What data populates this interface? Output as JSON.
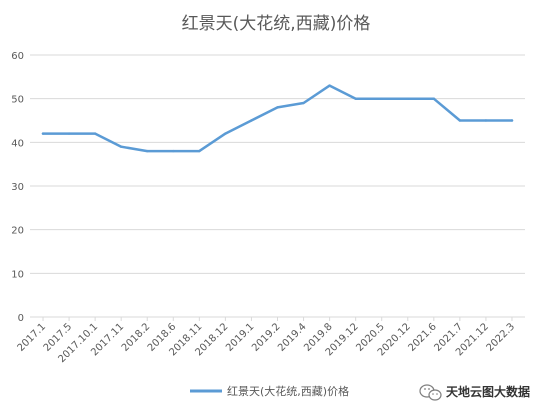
{
  "chart_data": {
    "type": "line",
    "title": "红景天(大花统,西藏)价格",
    "xlabel": "",
    "ylabel": "",
    "x": [
      "2017.1",
      "2017.5",
      "2017.10.1",
      "2017.11",
      "2018.2",
      "2018.6",
      "2018.11",
      "2018.12",
      "2019.1",
      "2019.2",
      "2019.4",
      "2019.8",
      "2019.12",
      "2020.5",
      "2020.12",
      "2021.6",
      "2021.7",
      "2021.12",
      "2022.3"
    ],
    "series": [
      {
        "name": "红景天(大花统,西藏)价格",
        "values": [
          42,
          42,
          42,
          39,
          38,
          38,
          38,
          42,
          45,
          48,
          49,
          53,
          50,
          50,
          50,
          50,
          45,
          45,
          45
        ],
        "color": "#5B9BD5"
      }
    ],
    "ylim": [
      0,
      60
    ],
    "yticks": [
      0,
      10,
      20,
      30,
      40,
      50,
      60
    ],
    "grid": true,
    "legend": "bottom"
  },
  "watermark": {
    "text": "天地云图大数据",
    "icon": "wechat-icon"
  }
}
